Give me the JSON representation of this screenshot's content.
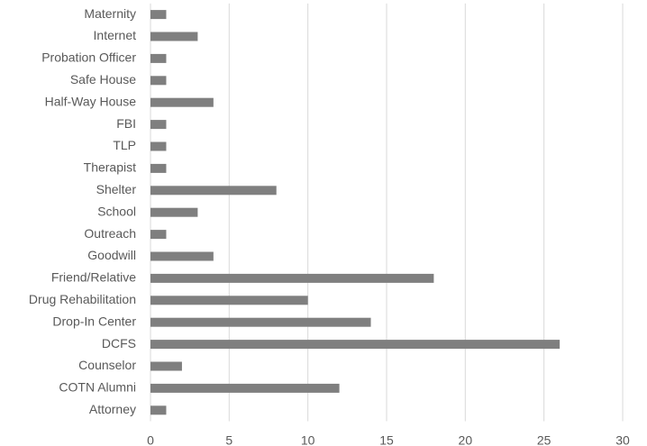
{
  "chart_data": {
    "type": "barh",
    "categories": [
      "Maternity",
      "Internet",
      "Probation Officer",
      "Safe House",
      "Half-Way House",
      "FBI",
      "TLP",
      "Therapist",
      "Shelter",
      "School",
      "Outreach",
      "Goodwill",
      "Friend/Relative",
      "Drug Rehabilitation",
      "Drop-In Center",
      "DCFS",
      "Counselor",
      "COTN Alumni",
      "Attorney"
    ],
    "values": [
      1,
      3,
      1,
      1,
      4,
      1,
      1,
      1,
      8,
      3,
      1,
      4,
      18,
      10,
      14,
      26,
      2,
      12,
      1
    ],
    "color": "#7f7f7f",
    "xlim": [
      0,
      30
    ],
    "xticks": [
      0,
      5,
      10,
      15,
      20,
      25,
      30
    ],
    "grid": true
  }
}
